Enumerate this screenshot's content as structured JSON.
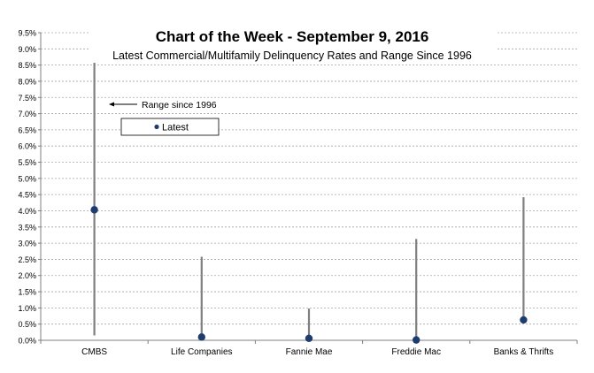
{
  "chart_data": {
    "type": "range-dot",
    "title": "Chart of the Week - September 9, 2016",
    "subtitle": "Latest Commercial/Multifamily Delinquency Rates and Range Since 1996",
    "categories": [
      "CMBS",
      "Life Companies",
      "Fannie Mae",
      "Freddie Mac",
      "Banks & Thrifts"
    ],
    "y_ticks": [
      "0.0%",
      "0.5%",
      "1.0%",
      "1.5%",
      "2.0%",
      "2.5%",
      "3.0%",
      "3.5%",
      "4.0%",
      "4.5%",
      "5.0%",
      "5.5%",
      "6.0%",
      "6.5%",
      "7.0%",
      "7.5%",
      "8.0%",
      "8.5%",
      "9.0%",
      "9.5%"
    ],
    "ylim": [
      0,
      9.5
    ],
    "grid": true,
    "ranges": [
      {
        "category": "CMBS",
        "low": 0.15,
        "high": 8.9
      },
      {
        "category": "Life Companies",
        "low": 0.05,
        "high": 2.58
      },
      {
        "category": "Fannie Mae",
        "low": 0.05,
        "high": 0.98
      },
      {
        "category": "Freddie Mac",
        "low": 0.01,
        "high": 3.13
      },
      {
        "category": "Banks & Thrifts",
        "low": 0.63,
        "high": 4.42
      }
    ],
    "latest": [
      {
        "category": "CMBS",
        "value": 4.03
      },
      {
        "category": "Life Companies",
        "value": 0.1
      },
      {
        "category": "Fannie Mae",
        "value": 0.06
      },
      {
        "category": "Freddie Mac",
        "value": 0.01
      },
      {
        "category": "Banks & Thrifts",
        "value": 0.63
      }
    ],
    "annotation": "Range since 1996",
    "legend": {
      "label": "Latest",
      "position": "upper-left"
    },
    "colors": {
      "range_line": "#7f7f7f",
      "dot": "#1f3c6e",
      "grid": "#a6a6a6",
      "axis": "#7f7f7f"
    }
  }
}
